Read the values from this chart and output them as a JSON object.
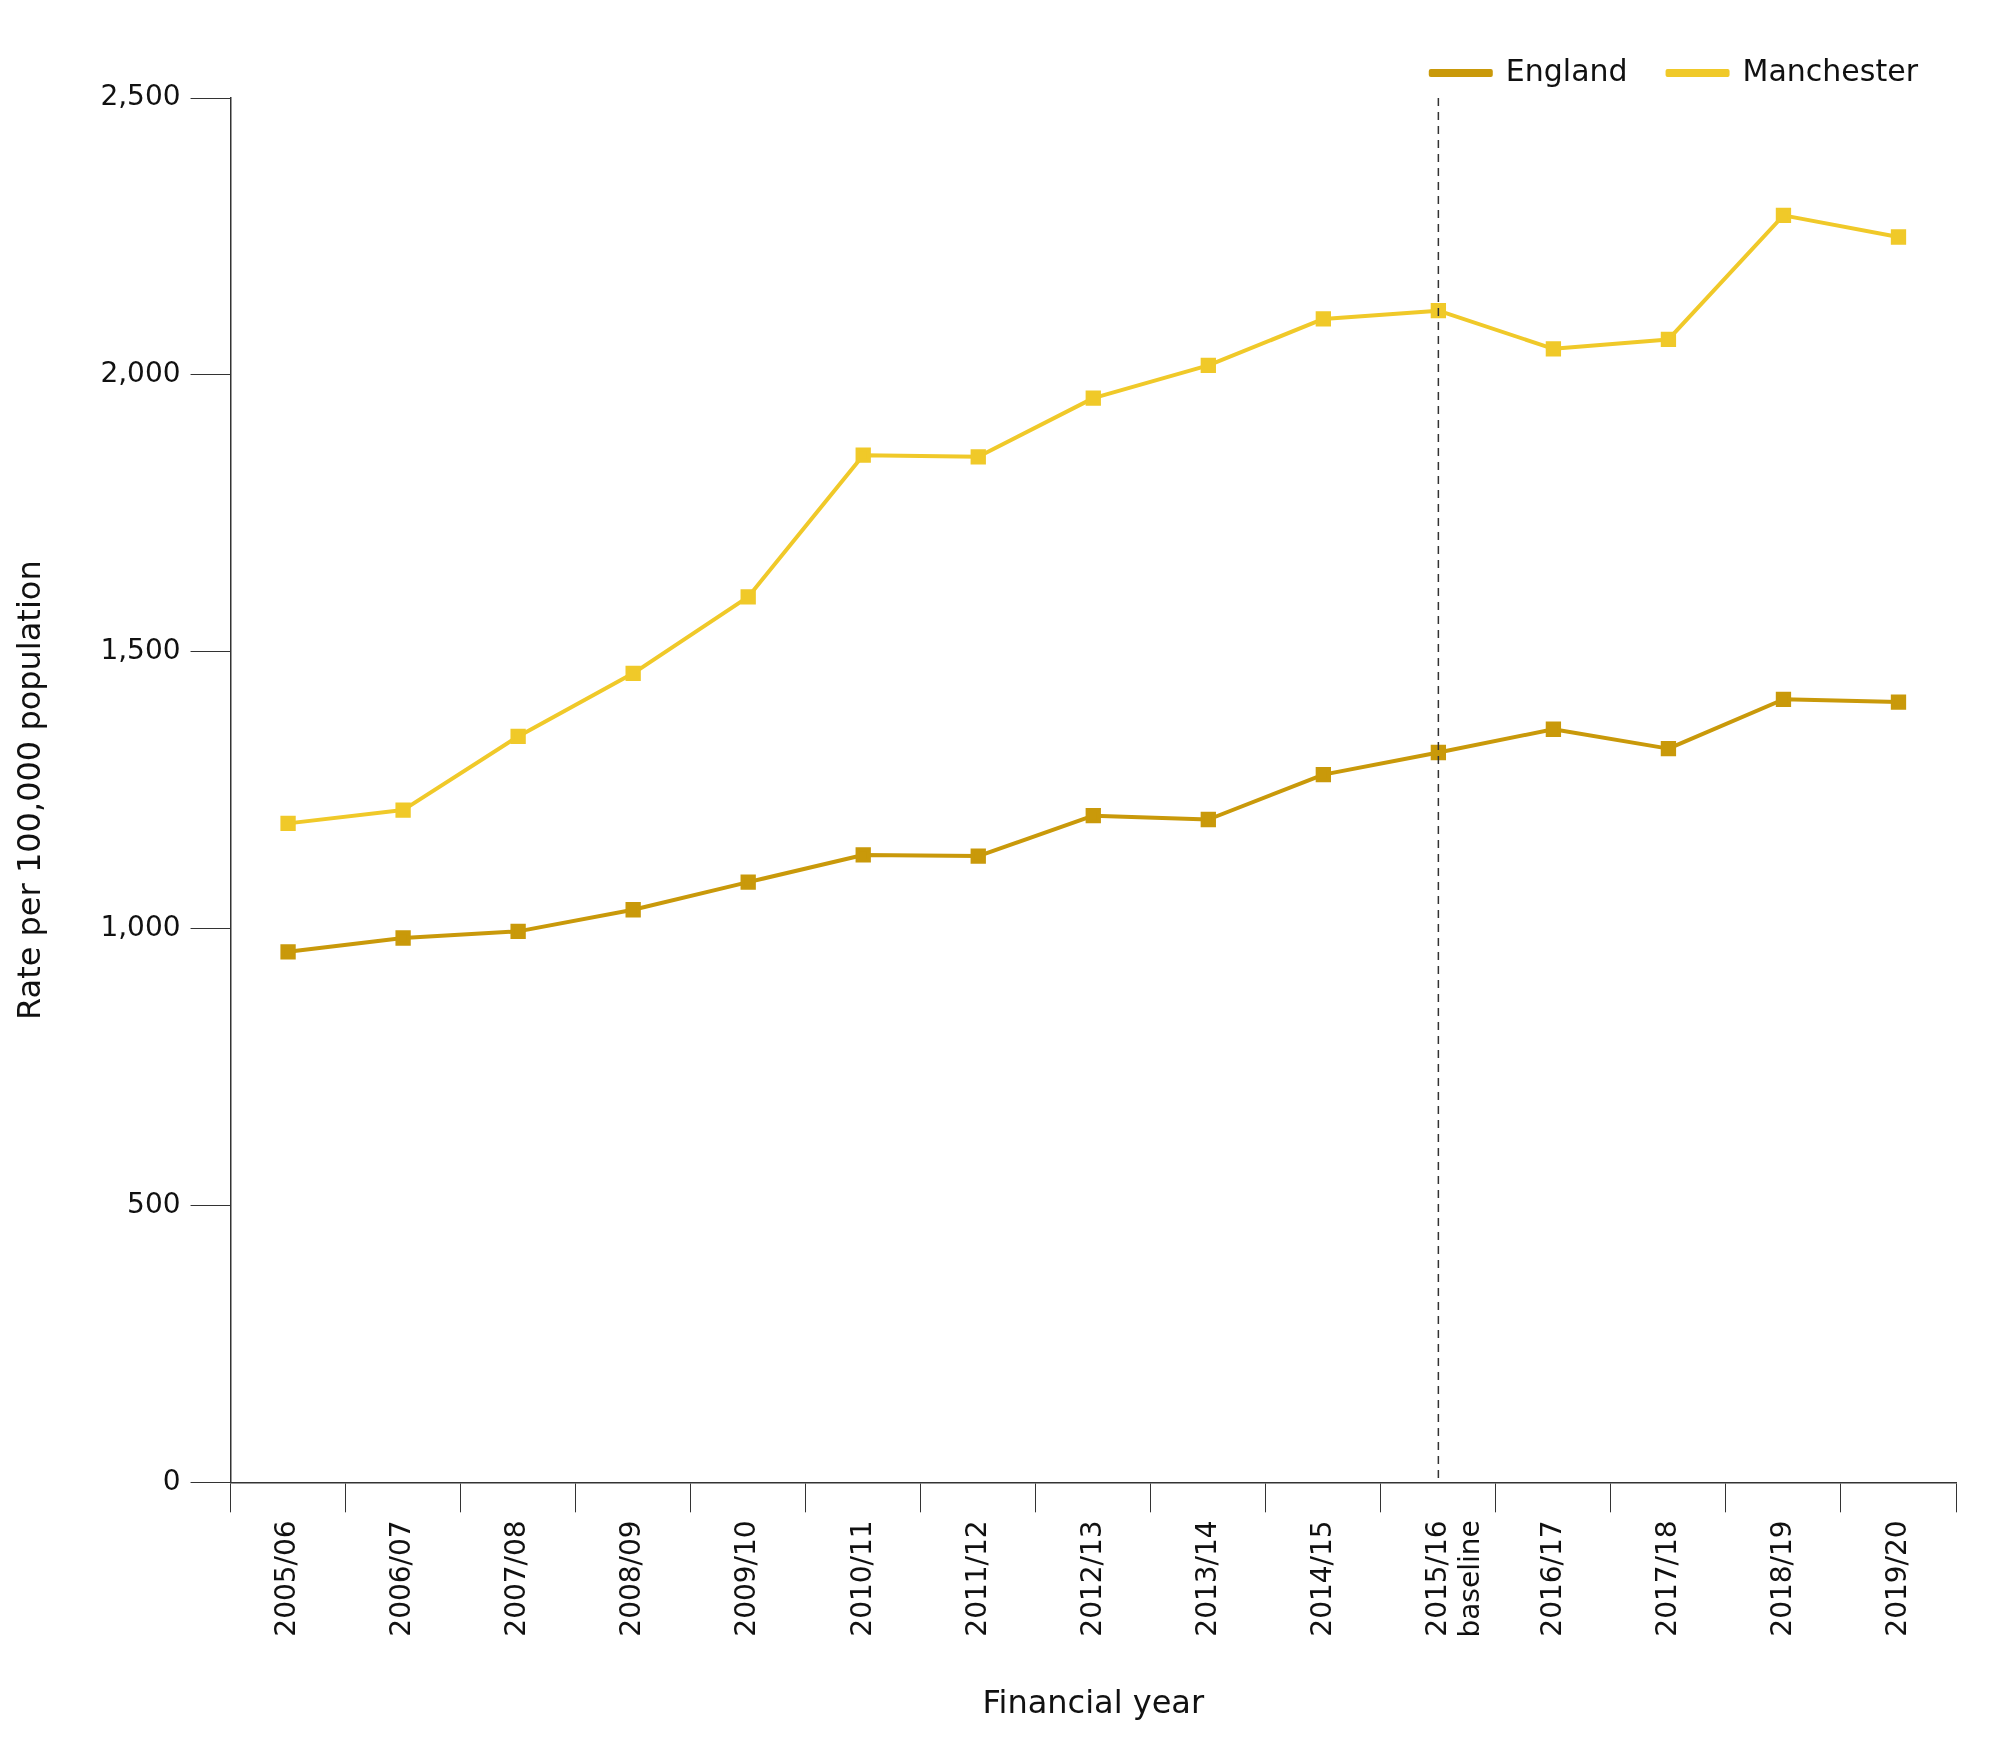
{
  "chart_data": {
    "type": "line",
    "xlabel": "Financial year",
    "ylabel": "Rate per 100,000 population",
    "categories": [
      "2005/06",
      "2006/07",
      "2007/08",
      "2008/09",
      "2009/10",
      "2010/11",
      "2011/12",
      "2012/13",
      "2013/14",
      "2014/15",
      "2015/16\nbaseline",
      "2016/17",
      "2017/18",
      "2018/19",
      "2019/20"
    ],
    "series": [
      {
        "name": "England",
        "color": "#c9990a",
        "values": [
          958,
          983,
          995,
          1034,
          1084,
          1133,
          1131,
          1204,
          1197,
          1278,
          1318,
          1360,
          1325,
          1414,
          1409
        ]
      },
      {
        "name": "Manchester",
        "color": "#f0c929",
        "values": [
          1190,
          1214,
          1347,
          1461,
          1599,
          1855,
          1852,
          1958,
          2017,
          2101,
          2116,
          2047,
          2064,
          2288,
          2249
        ]
      }
    ],
    "ylim": [
      0,
      2500
    ],
    "yticks": [
      0,
      {
        "value": 500,
        "label": "500"
      },
      {
        "value": 1000,
        "label": "1,000"
      },
      {
        "value": 1500,
        "label": "1,500"
      },
      {
        "value": 2000,
        "label": "2,000"
      },
      {
        "value": 2500,
        "label": "2,500"
      }
    ],
    "ref_lines": [
      {
        "axis": "x",
        "value": "2015/16\nbaseline",
        "color": "#333333",
        "line_style": "dashed"
      }
    ],
    "grid": false,
    "legend": "top right",
    "marker": "square",
    "line_style": "solid"
  }
}
